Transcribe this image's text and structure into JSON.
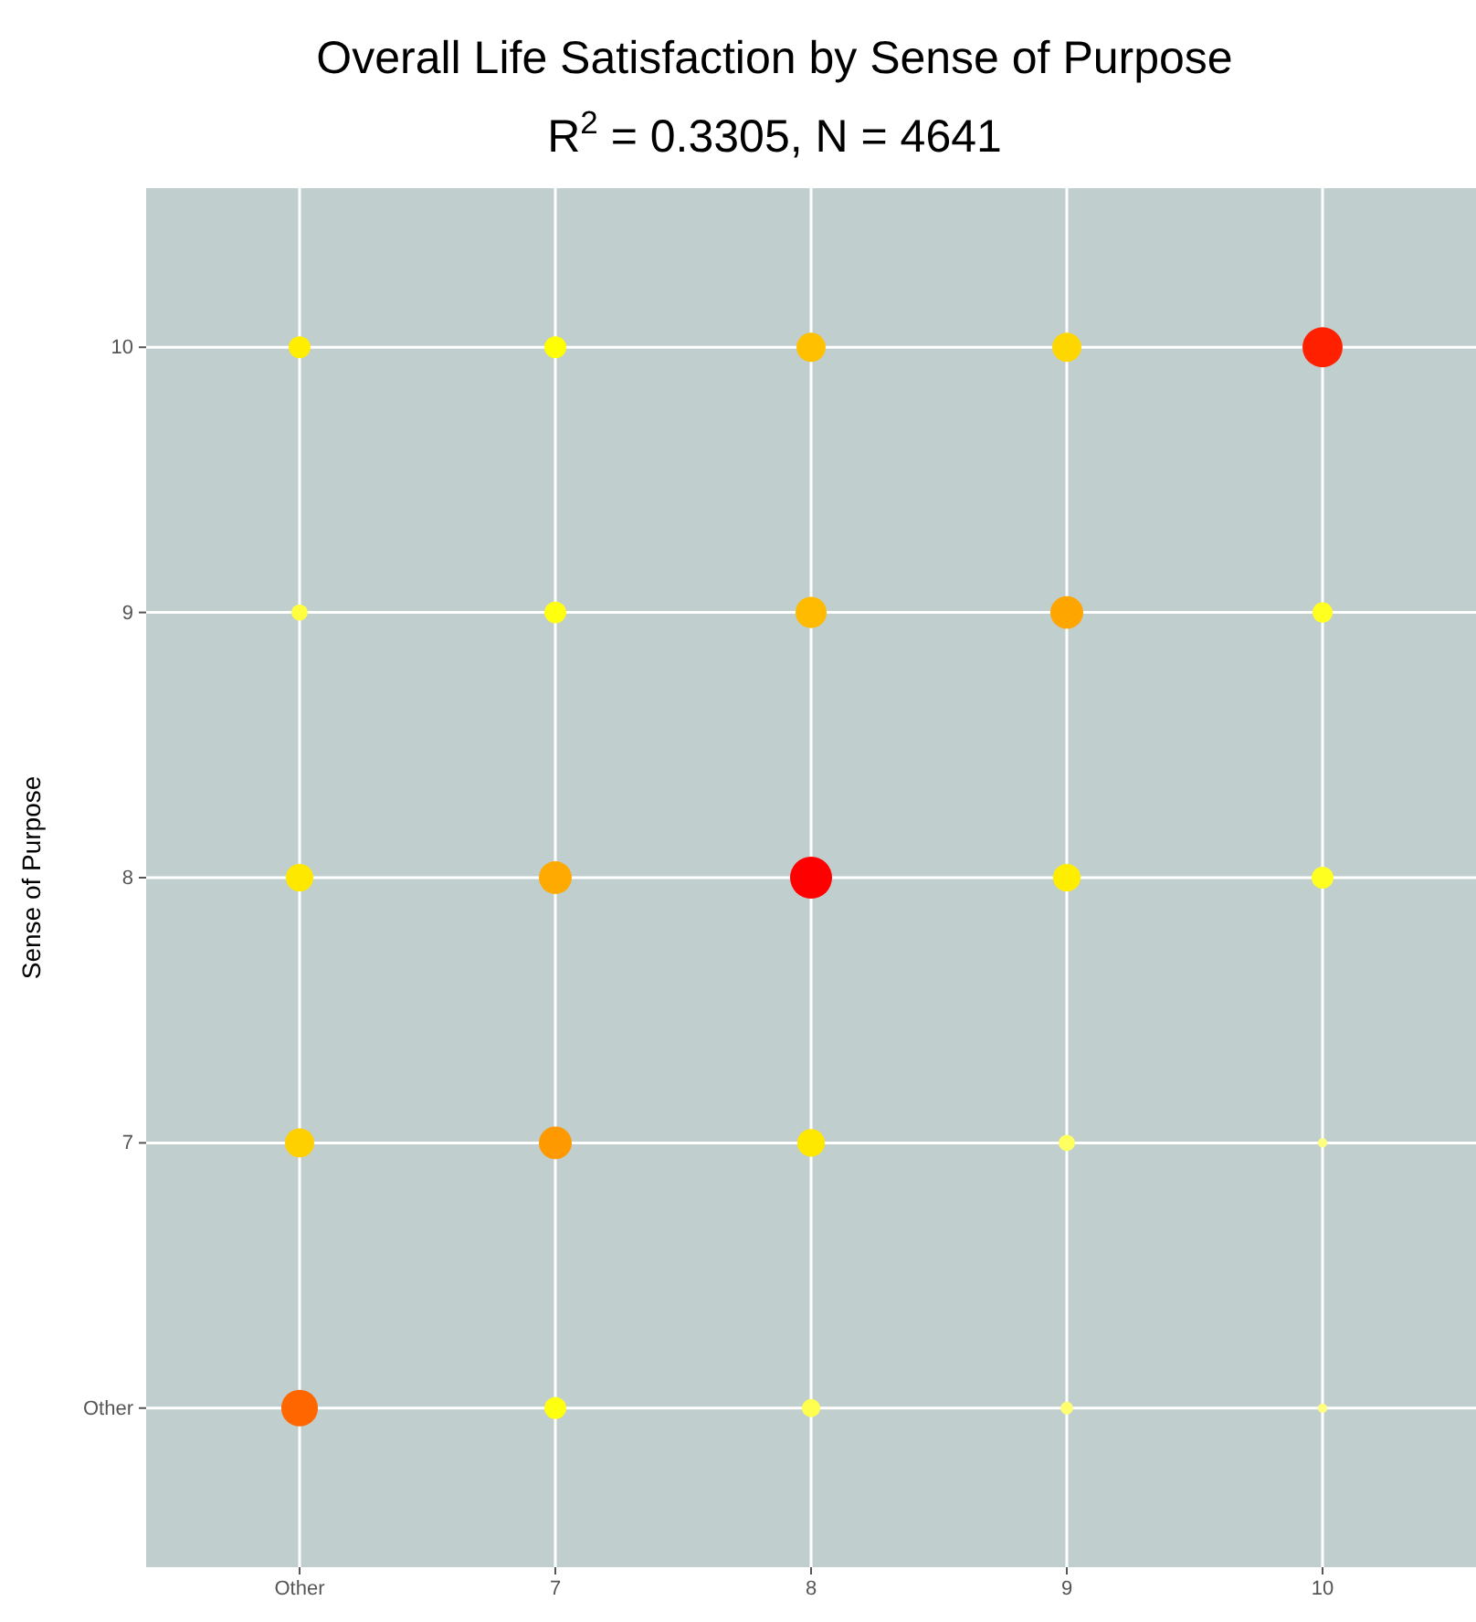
{
  "chart_data": {
    "type": "bubble",
    "title": "Overall Life Satisfaction by Sense of Purpose",
    "subtitle": "R$^{2}$ = 0.3305, N = 4641",
    "ylabel": "Sense of Purpose",
    "xlim": [
      5.4,
      10.6
    ],
    "xticks": [
      {
        "value": 6,
        "label": "Other"
      },
      7,
      8,
      9,
      10
    ],
    "ylim": [
      5.4,
      10.6
    ],
    "yticks": [
      {
        "value": 6,
        "label": "Other"
      },
      7,
      8,
      9,
      10
    ],
    "grid": true,
    "x": [
      6,
      7,
      8,
      9,
      10,
      6,
      7,
      8,
      9,
      10,
      6,
      7,
      8,
      9,
      10,
      6,
      7,
      8,
      9,
      10,
      6,
      7,
      8,
      9,
      10
    ],
    "values": [
      10,
      10,
      10,
      10,
      10,
      9,
      9,
      9,
      9,
      9,
      8,
      8,
      8,
      8,
      8,
      7,
      7,
      7,
      7,
      7,
      6,
      6,
      6,
      6,
      6
    ],
    "sizes": [
      0.27,
      0.27,
      0.48,
      0.48,
      0.91,
      0.15,
      0.27,
      0.55,
      0.61,
      0.23,
      0.43,
      0.61,
      1,
      0.43,
      0.27,
      0.48,
      0.61,
      0.43,
      0.15,
      0.05,
      0.76,
      0.27,
      0.19,
      0.09,
      0.05
    ],
    "colors": [
      "#ffee00",
      "#ffff00",
      "#ffc000",
      "#ffd700",
      "#ff2000",
      "#ffff40",
      "#ffff10",
      "#ffbb00",
      "#ffa500",
      "#ffff20",
      "#ffe800",
      "#ffaa00",
      "#ff0000",
      "#ffee00",
      "#ffff20",
      "#ffd000",
      "#ff9900",
      "#ffe800",
      "#ffff60",
      "#ffff80",
      "#ff6600",
      "#ffff10",
      "#ffff50",
      "#ffff70",
      "#ffff80"
    ]
  }
}
